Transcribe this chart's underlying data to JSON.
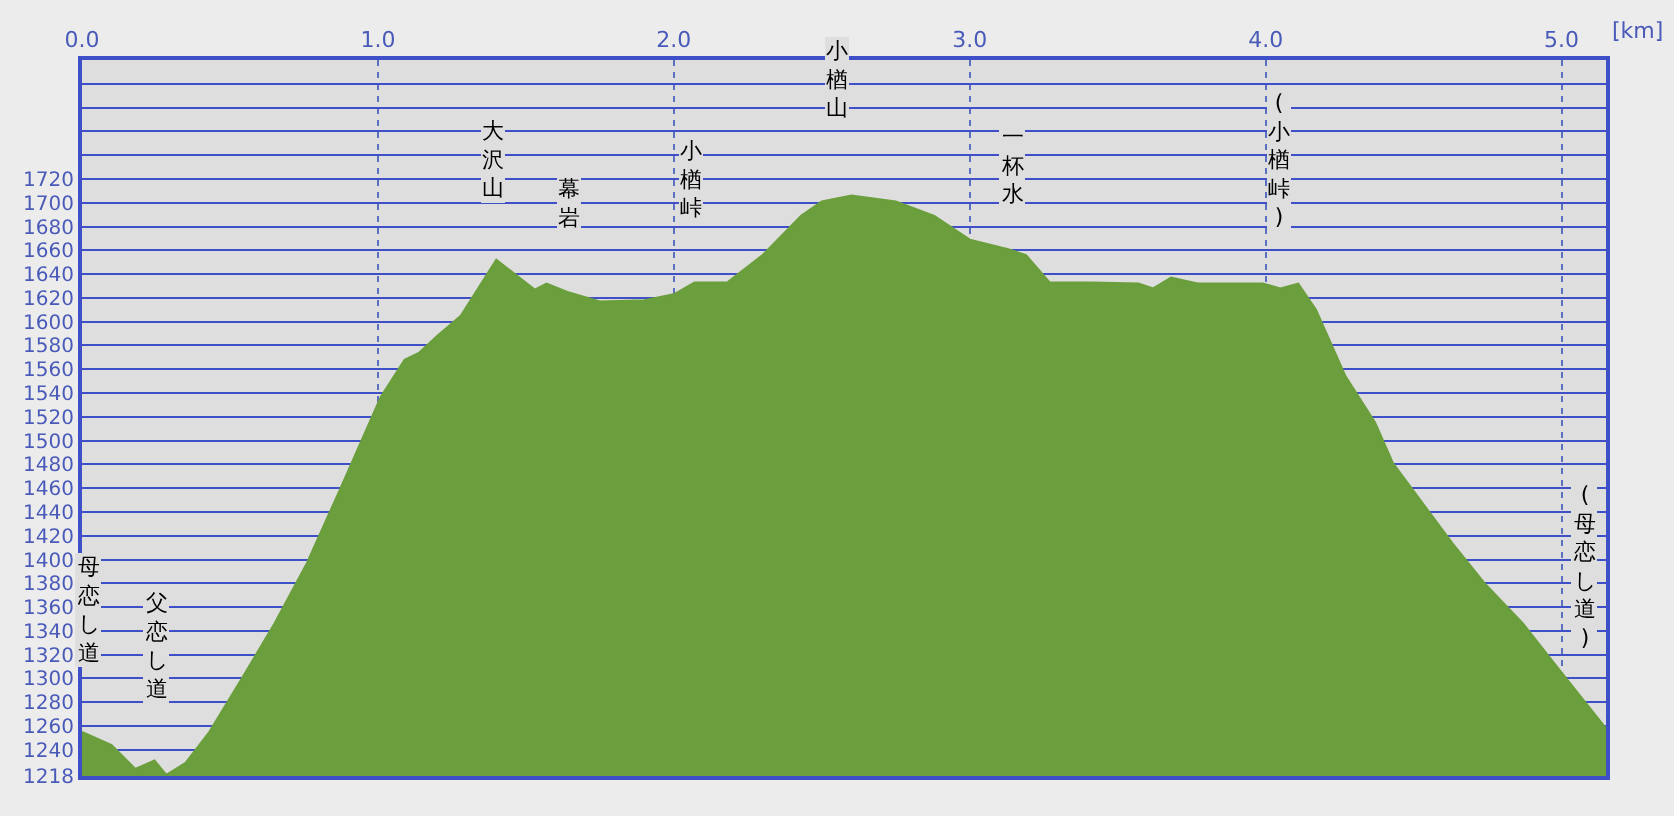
{
  "chart_data": {
    "type": "area",
    "xlabel": "[km]",
    "x": [
      0,
      0.1,
      0.18,
      0.245,
      0.285,
      0.35,
      0.43,
      0.54,
      0.65,
      0.76,
      0.87,
      1.01,
      1.09,
      1.14,
      1.2,
      1.28,
      1.4,
      1.53,
      1.57,
      1.64,
      1.75,
      1.9,
      2.0,
      2.07,
      2.18,
      2.3,
      2.43,
      2.5,
      2.6,
      2.75,
      2.88,
      3.0,
      3.13,
      3.19,
      3.27,
      3.41,
      3.57,
      3.62,
      3.68,
      3.77,
      3.86,
      3.99,
      4.05,
      4.11,
      4.17,
      4.27,
      4.37,
      4.43,
      4.63,
      4.74,
      4.87,
      5.0,
      5.15
    ],
    "series": [
      {
        "color": "#6b9e3c",
        "values": [
          1255,
          1244,
          1224,
          1231,
          1219,
          1229,
          1255,
          1300,
          1346,
          1397,
          1458,
          1537,
          1568,
          1574,
          1588,
          1605,
          1652,
          1627,
          1632,
          1625,
          1617,
          1618,
          1623,
          1633,
          1633,
          1656,
          1689,
          1701,
          1706,
          1701,
          1689,
          1669,
          1661,
          1656,
          1633,
          1633,
          1632,
          1628,
          1637,
          1632,
          1632,
          1632,
          1628,
          1632,
          1610,
          1554,
          1515,
          1481,
          1414,
          1380,
          1346,
          1305,
          1258
        ]
      }
    ],
    "xlim": [
      0,
      5.15
    ],
    "xticks": [
      {
        "value": 0,
        "label": "0.0"
      },
      {
        "value": 1,
        "label": "1.0"
      },
      {
        "value": 2,
        "label": "2.0"
      },
      {
        "value": 3,
        "label": "3.0"
      },
      {
        "value": 4,
        "label": "4.0"
      },
      {
        "value": 5,
        "label": "5.0"
      }
    ],
    "ylim": [
      1218,
      1820
    ],
    "yticks": [
      1218,
      1240,
      1260,
      1280,
      1300,
      1320,
      1340,
      1360,
      1380,
      1400,
      1420,
      1440,
      1460,
      1480,
      1500,
      1520,
      1540,
      1560,
      1580,
      1600,
      1620,
      1640,
      1660,
      1680,
      1700,
      1720,
      {
        "value": 1740,
        "label": null
      },
      {
        "value": 1760,
        "label": null
      },
      {
        "value": 1780,
        "label": null
      },
      {
        "value": 1800,
        "label": null
      }
    ],
    "grid": true,
    "annotations": [
      "母恋し道",
      "父恋し道",
      "大沢山",
      "幕岩",
      "小楢峠",
      "小楢山",
      "一杯水",
      "(小楢峠)",
      "(母恋し道)"
    ]
  }
}
